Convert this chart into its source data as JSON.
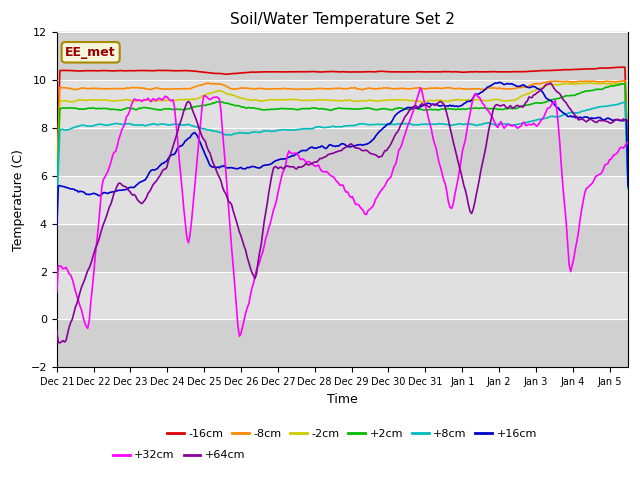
{
  "title": "Soil/Water Temperature Set 2",
  "xlabel": "Time",
  "ylabel": "Temperature (C)",
  "ylim": [
    -2,
    12
  ],
  "yticks": [
    -2,
    0,
    2,
    4,
    6,
    8,
    10,
    12
  ],
  "annotation_text": "EE_met",
  "background_color": "#ffffff",
  "plot_bg_color": "#e0e0e0",
  "series": {
    "-16cm": {
      "color": "#dd0000",
      "linewidth": 1.2
    },
    "-8cm": {
      "color": "#ff8800",
      "linewidth": 1.2
    },
    "-2cm": {
      "color": "#cccc00",
      "linewidth": 1.2
    },
    "+2cm": {
      "color": "#00bb00",
      "linewidth": 1.2
    },
    "+8cm": {
      "color": "#00bbbb",
      "linewidth": 1.2
    },
    "+16cm": {
      "color": "#0000cc",
      "linewidth": 1.2
    },
    "+32cm": {
      "color": "#ff00ff",
      "linewidth": 1.2
    },
    "+64cm": {
      "color": "#880099",
      "linewidth": 1.2
    }
  },
  "xtick_labels": [
    "Dec 21",
    "Dec 22",
    "Dec 23",
    "Dec 24",
    "Dec 25",
    "Dec 26",
    "Dec 27",
    "Dec 28",
    "Dec 29",
    "Dec 30",
    "Dec 31",
    "Jan 1",
    "Jan 2",
    "Jan 3",
    "Jan 4",
    "Jan 5"
  ],
  "stripe_color": "#cccccc",
  "stripe_alpha": 0.7,
  "white_stripe_color": "#e8e8e8"
}
